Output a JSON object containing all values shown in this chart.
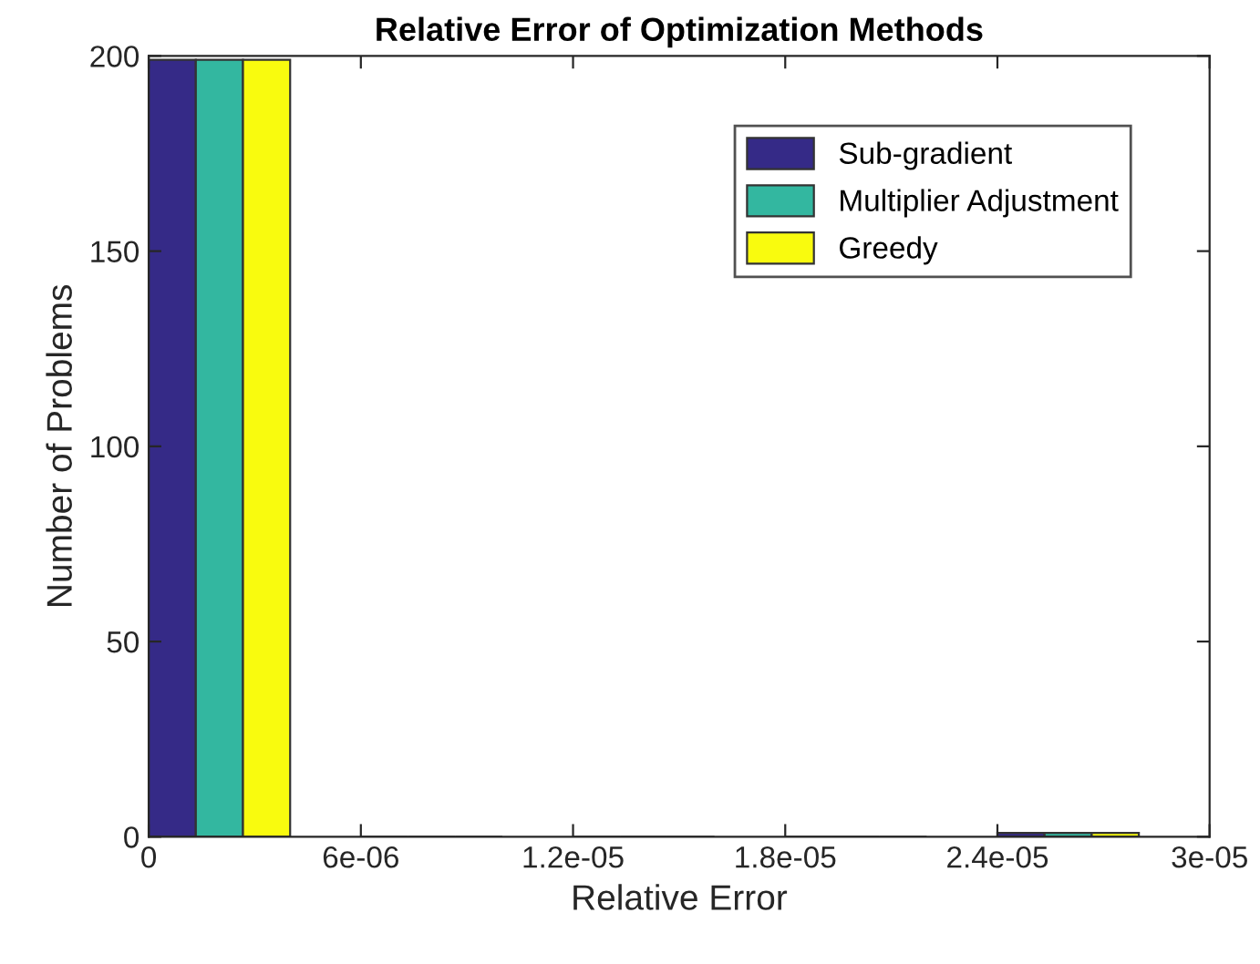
{
  "chart_data": {
    "type": "bar",
    "title": "Relative Error of Optimization Methods",
    "xlabel": "Relative Error",
    "ylabel": "Number of Problems",
    "x": [
      2e-06,
      8e-06,
      1.4e-05,
      2e-05,
      2.6e-05
    ],
    "series": [
      {
        "name": "Sub-gradient",
        "color": "#352a87",
        "values": [
          199,
          0,
          0,
          0,
          1
        ]
      },
      {
        "name": "Multiplier Adjustment",
        "color": "#33b7a0",
        "values": [
          199,
          0,
          0,
          0,
          1
        ]
      },
      {
        "name": "Greedy",
        "color": "#f9fb0e",
        "values": [
          199,
          0,
          0,
          0,
          1
        ]
      }
    ],
    "xlim": [
      0,
      3e-05
    ],
    "xticks": [
      {
        "value": 0,
        "label": "0"
      },
      {
        "value": 6e-06,
        "label": "6e-06"
      },
      {
        "value": 1.2e-05,
        "label": "1.2e-05"
      },
      {
        "value": 1.8e-05,
        "label": "1.8e-05"
      },
      {
        "value": 2.4e-05,
        "label": "2.4e-05"
      },
      {
        "value": 3e-05,
        "label": "3e-05"
      }
    ],
    "ylim": [
      0,
      200
    ],
    "yticks": [
      0,
      50,
      100,
      150,
      200
    ],
    "grid": false,
    "legend": "top right"
  }
}
